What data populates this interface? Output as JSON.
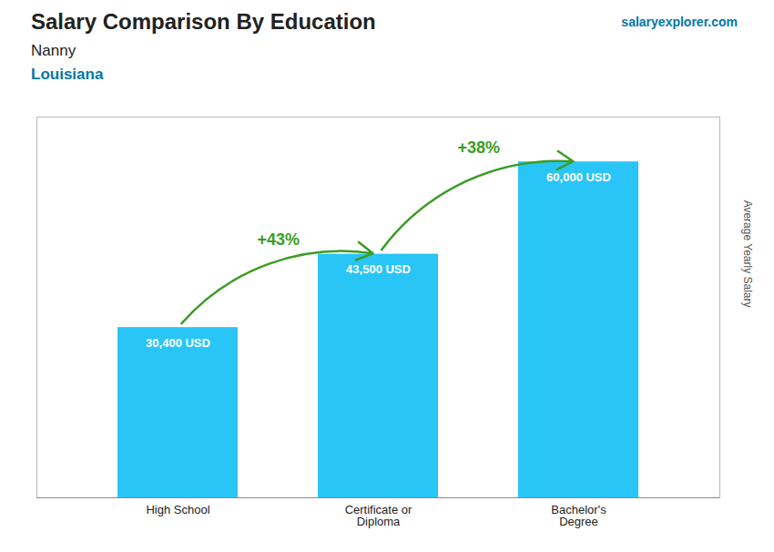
{
  "chart_data": {
    "type": "bar",
    "title": "Salary Comparison By Education",
    "subtitle": [
      "Nanny",
      "Louisiana"
    ],
    "ylabel": "Average Yearly Salary",
    "categories": [
      "High School",
      "Certificate or\nDiploma",
      "Bachelor's\nDegree"
    ],
    "values": [
      30400,
      43500,
      60000
    ],
    "value_labels": [
      "30,400 USD",
      "43,500 USD",
      "60,000 USD"
    ],
    "data_labels": true,
    "color": "#29c5f6",
    "ylim": [
      0,
      68000
    ],
    "tick_labels": "x",
    "annotations": [
      {
        "text": "+43%",
        "from": 0,
        "to": 1
      },
      {
        "text": "+38%",
        "from": 1,
        "to": 2
      },
      {
        "text": "salaryexplorer.com"
      }
    ]
  }
}
